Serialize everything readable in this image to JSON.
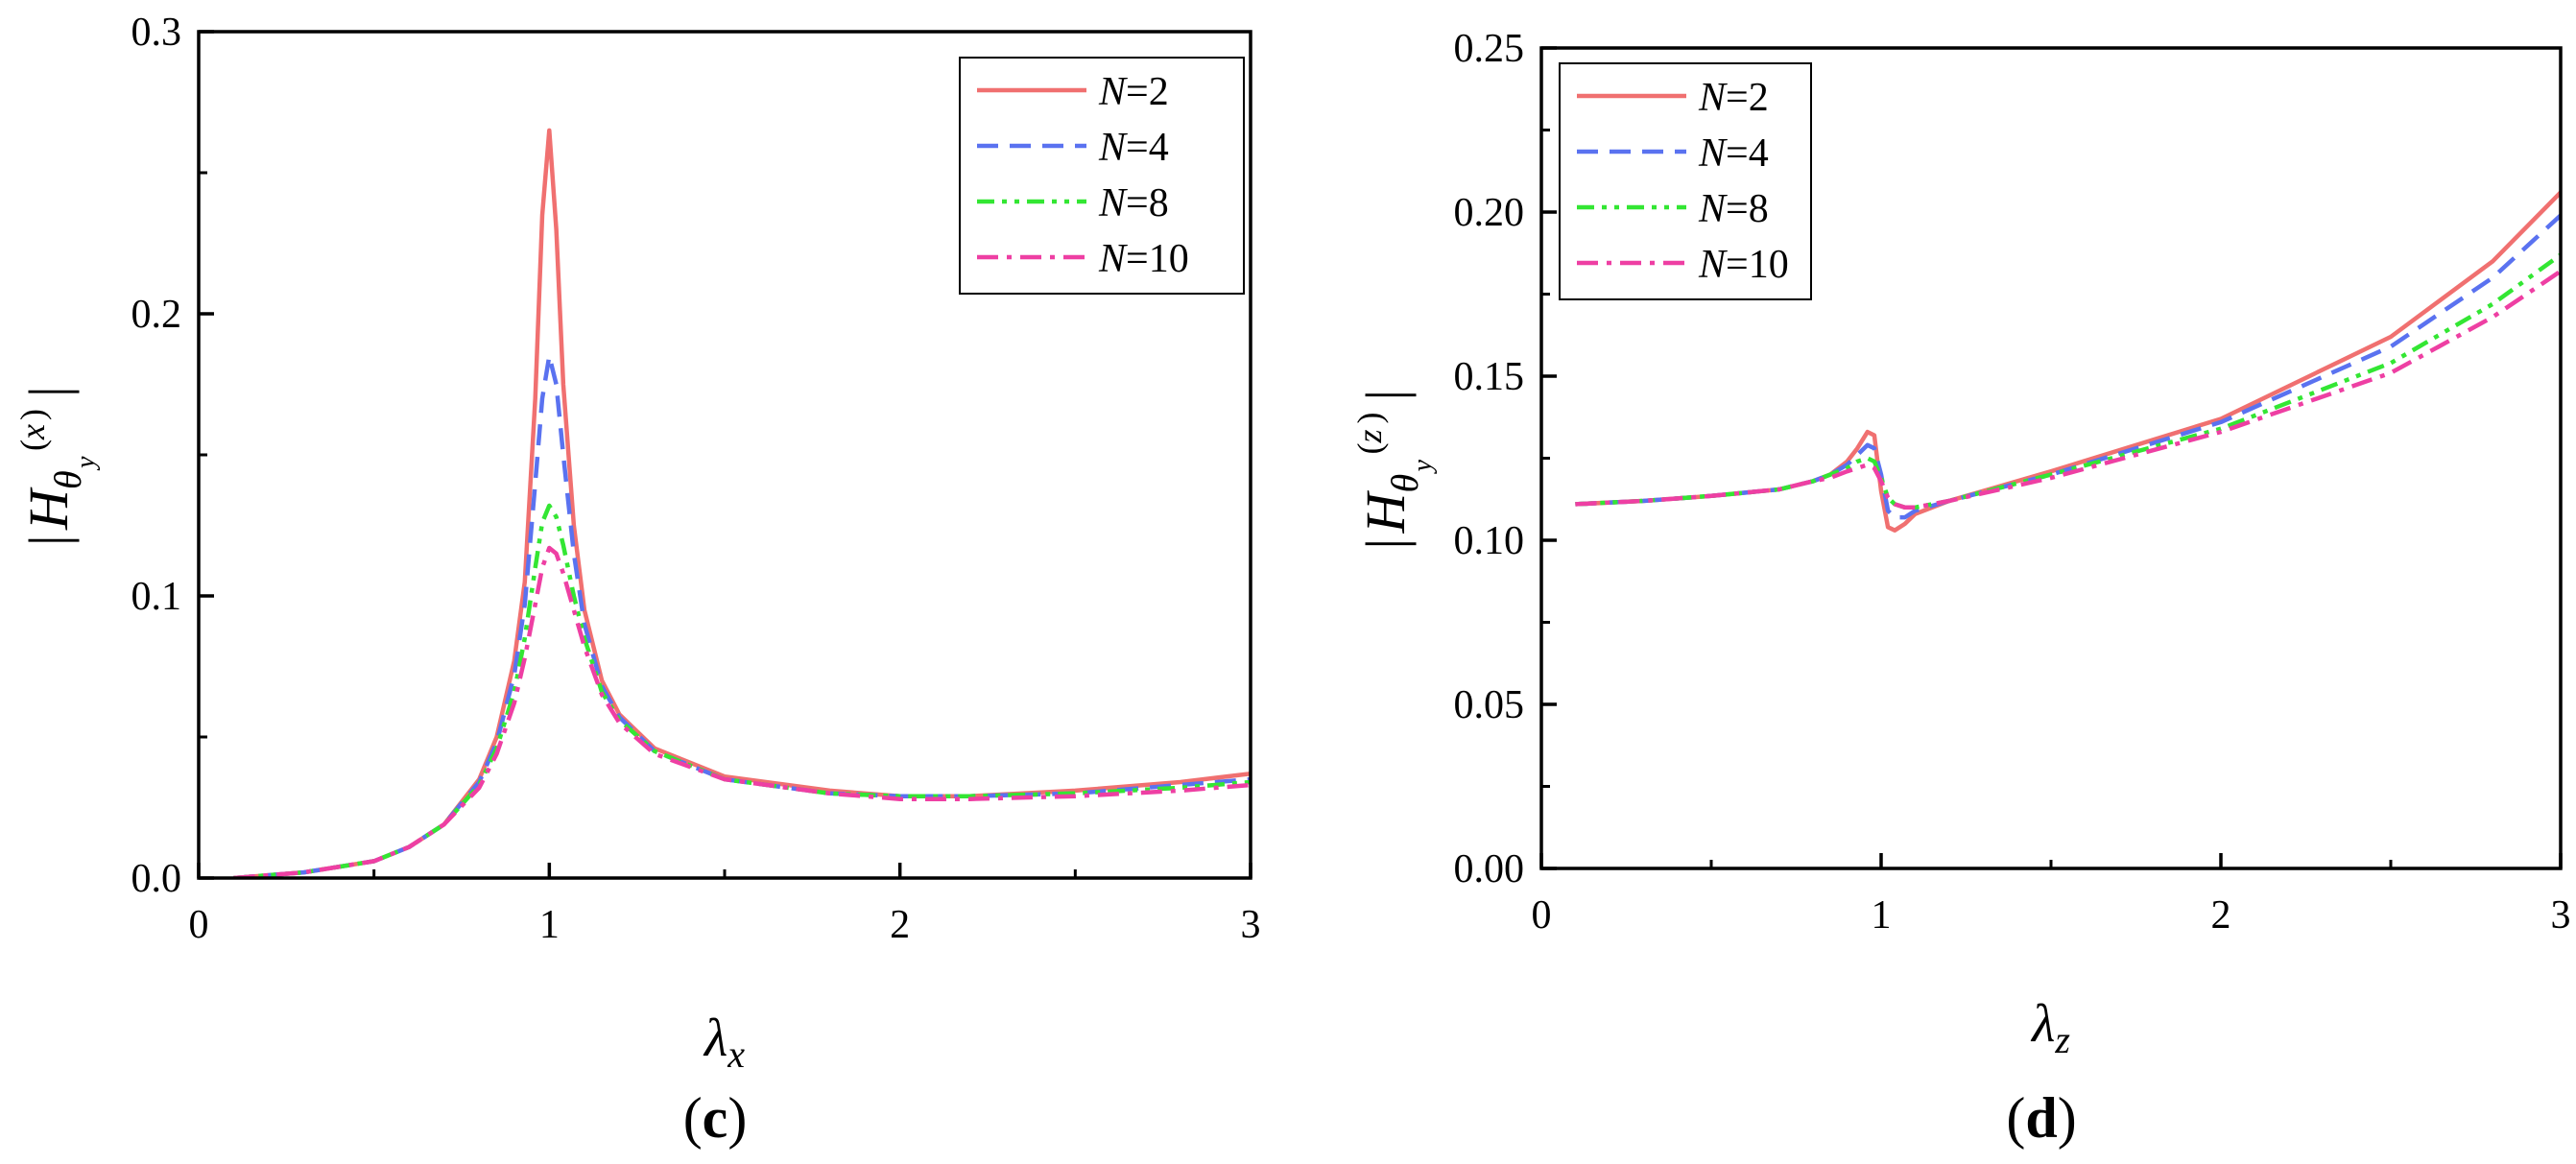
{
  "chart_data": [
    {
      "type": "line",
      "panel_label": "c",
      "xlabel_sym": "λ",
      "xlabel_sub": "x",
      "ylabel_sup": "x",
      "xlim": [
        0,
        3
      ],
      "ylim": [
        0,
        0.3
      ],
      "xticks": [
        "0",
        "1",
        "2",
        "3"
      ],
      "yticks": [
        "0.0",
        "0.1",
        "0.2",
        "0.3"
      ],
      "grid": false,
      "legend_position": "top-right",
      "series": [
        {
          "name": "N=2",
          "color": "#f07070",
          "dash": "solid",
          "x": [
            0.1,
            0.3,
            0.5,
            0.6,
            0.7,
            0.8,
            0.85,
            0.9,
            0.93,
            0.96,
            0.98,
            1.0,
            1.02,
            1.04,
            1.07,
            1.1,
            1.15,
            1.2,
            1.3,
            1.5,
            1.8,
            2.0,
            2.2,
            2.5,
            2.8,
            3.0
          ],
          "y": [
            0.0,
            0.002,
            0.006,
            0.011,
            0.019,
            0.035,
            0.05,
            0.077,
            0.105,
            0.17,
            0.235,
            0.265,
            0.23,
            0.175,
            0.125,
            0.095,
            0.07,
            0.058,
            0.046,
            0.036,
            0.031,
            0.029,
            0.029,
            0.031,
            0.034,
            0.037
          ]
        },
        {
          "name": "N=4",
          "color": "#5a72f0",
          "dash": "dash",
          "x": [
            0.1,
            0.3,
            0.5,
            0.6,
            0.7,
            0.8,
            0.85,
            0.9,
            0.93,
            0.96,
            0.98,
            1.0,
            1.02,
            1.04,
            1.07,
            1.1,
            1.15,
            1.2,
            1.3,
            1.5,
            1.8,
            2.0,
            2.2,
            2.5,
            2.8,
            3.0
          ],
          "y": [
            0.0,
            0.002,
            0.006,
            0.011,
            0.019,
            0.034,
            0.048,
            0.072,
            0.097,
            0.14,
            0.17,
            0.185,
            0.175,
            0.15,
            0.115,
            0.09,
            0.068,
            0.057,
            0.045,
            0.035,
            0.03,
            0.029,
            0.029,
            0.03,
            0.033,
            0.035
          ]
        },
        {
          "name": "N=8",
          "color": "#33e633",
          "dash": "dashdotdot",
          "x": [
            0.1,
            0.3,
            0.5,
            0.6,
            0.7,
            0.8,
            0.85,
            0.9,
            0.93,
            0.96,
            0.98,
            1.0,
            1.02,
            1.04,
            1.07,
            1.1,
            1.15,
            1.2,
            1.3,
            1.5,
            1.8,
            2.0,
            2.2,
            2.5,
            2.8,
            3.0
          ],
          "y": [
            0.0,
            0.002,
            0.006,
            0.011,
            0.019,
            0.033,
            0.046,
            0.066,
            0.085,
            0.11,
            0.126,
            0.132,
            0.128,
            0.118,
            0.1,
            0.085,
            0.066,
            0.056,
            0.045,
            0.035,
            0.03,
            0.029,
            0.029,
            0.03,
            0.032,
            0.034
          ]
        },
        {
          "name": "N=10",
          "color": "#ee3fa3",
          "dash": "dashdot",
          "x": [
            0.1,
            0.3,
            0.5,
            0.6,
            0.7,
            0.8,
            0.85,
            0.9,
            0.93,
            0.96,
            0.98,
            1.0,
            1.02,
            1.04,
            1.07,
            1.1,
            1.15,
            1.2,
            1.3,
            1.5,
            1.8,
            2.0,
            2.2,
            2.5,
            2.8,
            3.0
          ],
          "y": [
            0.0,
            0.002,
            0.006,
            0.011,
            0.019,
            0.032,
            0.044,
            0.062,
            0.078,
            0.097,
            0.11,
            0.117,
            0.115,
            0.108,
            0.095,
            0.082,
            0.065,
            0.055,
            0.044,
            0.035,
            0.03,
            0.028,
            0.028,
            0.029,
            0.031,
            0.033
          ]
        }
      ],
      "annotations": [
        {
          "name": "N=4",
          "color": "#5a72f0",
          "x": [
            0.99,
            1.01
          ],
          "y": [
            0.18,
            0.185
          ]
        }
      ]
    },
    {
      "type": "line",
      "panel_label": "d",
      "xlabel_sym": "λ",
      "xlabel_sub": "z",
      "ylabel_sup": "z",
      "xlim": [
        0,
        3
      ],
      "ylim": [
        0,
        0.25
      ],
      "xticks": [
        "0",
        "1",
        "2",
        "3"
      ],
      "yticks": [
        "0.00",
        "0.05",
        "0.10",
        "0.15",
        "0.20",
        "0.25"
      ],
      "grid": false,
      "legend_position": "top-left",
      "series": [
        {
          "name": "N=2",
          "color": "#f07070",
          "dash": "solid",
          "x": [
            0.1,
            0.3,
            0.5,
            0.7,
            0.8,
            0.85,
            0.9,
            0.93,
            0.96,
            0.98,
            1.0,
            1.02,
            1.04,
            1.07,
            1.1,
            1.2,
            1.5,
            2.0,
            2.5,
            2.8,
            3.0
          ],
          "y": [
            0.111,
            0.112,
            0.1135,
            0.1155,
            0.118,
            0.12,
            0.124,
            0.128,
            0.133,
            0.132,
            0.115,
            0.104,
            0.103,
            0.105,
            0.108,
            0.112,
            0.121,
            0.137,
            0.162,
            0.185,
            0.206
          ]
        },
        {
          "name": "N=4",
          "color": "#5a72f0",
          "dash": "dash",
          "x": [
            0.1,
            0.3,
            0.5,
            0.7,
            0.8,
            0.85,
            0.9,
            0.93,
            0.96,
            0.98,
            1.0,
            1.02,
            1.04,
            1.07,
            1.1,
            1.2,
            1.5,
            2.0,
            2.5,
            2.8,
            3.0
          ],
          "y": [
            0.111,
            0.112,
            0.1135,
            0.1155,
            0.118,
            0.12,
            0.123,
            0.126,
            0.129,
            0.128,
            0.12,
            0.109,
            0.107,
            0.107,
            0.109,
            0.112,
            0.12,
            0.136,
            0.159,
            0.18,
            0.199
          ]
        },
        {
          "name": "N=8",
          "color": "#33e633",
          "dash": "dashdotdot",
          "x": [
            0.1,
            0.3,
            0.5,
            0.7,
            0.8,
            0.85,
            0.9,
            0.93,
            0.96,
            0.98,
            1.0,
            1.02,
            1.04,
            1.07,
            1.1,
            1.2,
            1.5,
            2.0,
            2.5,
            2.8,
            3.0
          ],
          "y": [
            0.111,
            0.112,
            0.1135,
            0.1155,
            0.118,
            0.12,
            0.122,
            0.124,
            0.125,
            0.124,
            0.119,
            0.113,
            0.111,
            0.11,
            0.11,
            0.112,
            0.12,
            0.134,
            0.154,
            0.172,
            0.187
          ]
        },
        {
          "name": "N=10",
          "color": "#ee3fa3",
          "dash": "dashdot",
          "x": [
            0.1,
            0.3,
            0.5,
            0.7,
            0.8,
            0.85,
            0.9,
            0.93,
            0.96,
            0.98,
            1.0,
            1.02,
            1.04,
            1.07,
            1.1,
            1.2,
            1.5,
            2.0,
            2.5,
            2.8,
            3.0
          ],
          "y": [
            0.111,
            0.112,
            0.1135,
            0.1155,
            0.118,
            0.119,
            0.121,
            0.122,
            0.123,
            0.122,
            0.118,
            0.113,
            0.111,
            0.11,
            0.11,
            0.112,
            0.119,
            0.133,
            0.151,
            0.168,
            0.182
          ]
        }
      ]
    }
  ],
  "colors": {
    "axis": "#000000",
    "background": "#ffffff"
  }
}
